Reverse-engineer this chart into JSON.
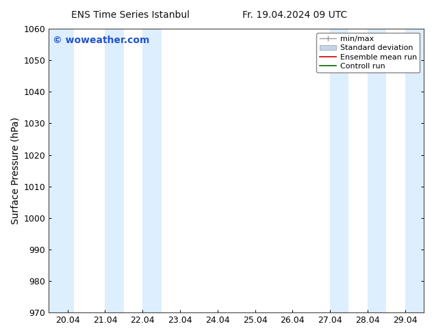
{
  "title": "ENS Time Series Istanbul",
  "title2": "Fr. 19.04.2024 09 UTC",
  "ylabel": "Surface Pressure (hPa)",
  "ylim": [
    970,
    1060
  ],
  "yticks": [
    970,
    980,
    990,
    1000,
    1010,
    1020,
    1030,
    1040,
    1050,
    1060
  ],
  "xtick_labels": [
    "20.04",
    "21.04",
    "22.04",
    "23.04",
    "24.04",
    "25.04",
    "26.04",
    "27.04",
    "28.04",
    "29.04"
  ],
  "xtick_positions": [
    20,
    21,
    22,
    23,
    24,
    25,
    26,
    27,
    28,
    29
  ],
  "xlim": [
    19.5,
    29.5
  ],
  "watermark": "© woweather.com",
  "watermark_color": "#2255cc",
  "bg_color": "#ffffff",
  "plot_bg_color": "#ffffff",
  "shaded_color": "#ddeeff",
  "shaded_bands": [
    {
      "xstart": 19.5,
      "xend": 20.17
    },
    {
      "xstart": 21.0,
      "xend": 21.5
    },
    {
      "xstart": 22.0,
      "xend": 22.5
    },
    {
      "xstart": 27.0,
      "xend": 27.5
    },
    {
      "xstart": 28.0,
      "xend": 28.5
    },
    {
      "xstart": 29.0,
      "xend": 29.5
    }
  ],
  "legend_entries": [
    {
      "label": "min/max"
    },
    {
      "label": "Standard deviation"
    },
    {
      "label": "Ensemble mean run",
      "color": "#cc0000"
    },
    {
      "label": "Controll run",
      "color": "#006600"
    }
  ],
  "font_size": 9,
  "title_font_size": 10,
  "legend_font_size": 8
}
